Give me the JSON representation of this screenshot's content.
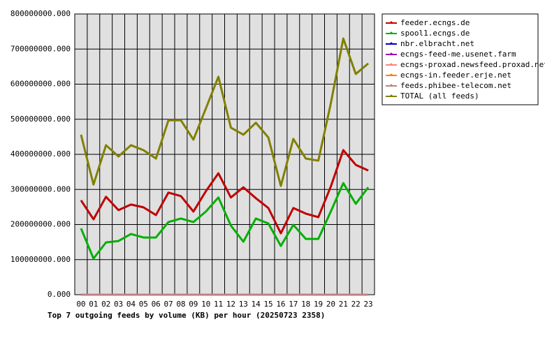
{
  "chart_data": {
    "type": "line",
    "title": "Top 7 outgoing feeds by volume (KB) per hour (20250723 2358)",
    "categories": [
      "00",
      "01",
      "02",
      "03",
      "04",
      "05",
      "06",
      "07",
      "08",
      "09",
      "10",
      "11",
      "12",
      "13",
      "14",
      "15",
      "16",
      "17",
      "18",
      "19",
      "20",
      "21",
      "22",
      "23"
    ],
    "series": [
      {
        "name": "feeder.ecngs.de",
        "color": "#c00000",
        "values": [
          269000000,
          215000000,
          279000000,
          241000000,
          257000000,
          249000000,
          227000000,
          291000000,
          281000000,
          237000000,
          295000000,
          346000000,
          277000000,
          306000000,
          275000000,
          247000000,
          175000000,
          247000000,
          231000000,
          221000000,
          308000000,
          412000000,
          370000000,
          354000000
        ]
      },
      {
        "name": "spool1.ecngs.de",
        "color": "#00b000",
        "values": [
          189000000,
          103000000,
          149000000,
          153000000,
          173000000,
          163000000,
          163000000,
          207000000,
          217000000,
          207000000,
          237000000,
          277000000,
          197000000,
          151000000,
          217000000,
          203000000,
          139000000,
          199000000,
          159000000,
          159000000,
          237000000,
          318000000,
          259000000,
          306000000
        ]
      },
      {
        "name": "nbr.elbracht.net",
        "color": "#0000c0",
        "values": [
          0,
          0,
          0,
          0,
          0,
          0,
          0,
          0,
          0,
          0,
          0,
          0,
          0,
          0,
          0,
          0,
          0,
          0,
          0,
          0,
          0,
          0,
          0,
          0
        ]
      },
      {
        "name": "ecngs-feed-me.usenet.farm",
        "color": "#a000c0",
        "values": [
          0,
          0,
          0,
          0,
          0,
          0,
          0,
          0,
          0,
          0,
          0,
          0,
          0,
          0,
          0,
          0,
          0,
          0,
          0,
          0,
          0,
          0,
          0,
          0
        ]
      },
      {
        "name": "ecngs-proxad.newsfeed.proxad.net",
        "color": "#ff8080",
        "values": [
          0,
          0,
          0,
          0,
          0,
          0,
          0,
          0,
          0,
          0,
          0,
          0,
          0,
          0,
          0,
          0,
          0,
          0,
          0,
          0,
          0,
          0,
          0,
          0
        ]
      },
      {
        "name": "ecngs-in.feeder.erje.net",
        "color": "#ff8000",
        "values": [
          0,
          0,
          0,
          0,
          0,
          0,
          0,
          0,
          0,
          0,
          0,
          0,
          0,
          0,
          0,
          0,
          0,
          0,
          0,
          0,
          0,
          0,
          0,
          0
        ]
      },
      {
        "name": "feeds.phibee-telecom.net",
        "color": "#c08080",
        "values": [
          0,
          0,
          0,
          0,
          0,
          0,
          0,
          0,
          0,
          0,
          0,
          0,
          0,
          0,
          0,
          0,
          0,
          0,
          0,
          0,
          0,
          0,
          0,
          0
        ]
      },
      {
        "name": "TOTAL (all feeds)",
        "color": "#808000",
        "values": [
          456000000,
          314000000,
          426000000,
          394000000,
          426000000,
          412000000,
          388000000,
          497000000,
          497000000,
          442000000,
          531000000,
          621000000,
          476000000,
          456000000,
          490000000,
          448000000,
          310000000,
          444000000,
          388000000,
          382000000,
          545000000,
          730000000,
          629000000,
          659000000
        ]
      }
    ],
    "ylim": [
      0,
      800000000
    ],
    "yticks": [
      {
        "value": 0,
        "label": "0.000"
      },
      {
        "value": 100000000,
        "label": "100000000.000"
      },
      {
        "value": 200000000,
        "label": "200000000.000"
      },
      {
        "value": 300000000,
        "label": "300000000.000"
      },
      {
        "value": 400000000,
        "label": "400000000.000"
      },
      {
        "value": 500000000,
        "label": "500000000.000"
      },
      {
        "value": 600000000,
        "label": "600000000.000"
      },
      {
        "value": 700000000,
        "label": "700000000.000"
      },
      {
        "value": 800000000,
        "label": "800000000.000"
      }
    ],
    "grid": true
  }
}
